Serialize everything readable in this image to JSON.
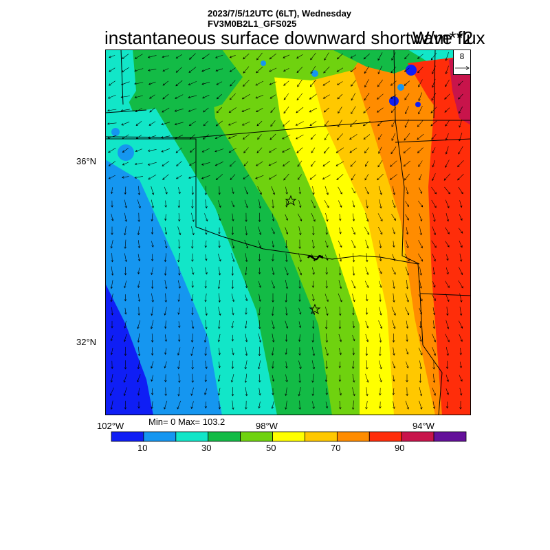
{
  "header": {
    "line1": "2023/7/5/12UTC (6LT), Wednesday",
    "line2": "FV3M0B2L1_GFS025"
  },
  "title": "instantaneous surface downward shortwave flux",
  "units": "W/m**2",
  "vector_reference": {
    "magnitude": "8"
  },
  "axes": {
    "lat_labels": [
      "36°N",
      "32°N"
    ],
    "lon_labels": [
      "102°W",
      "98°W",
      "94°W"
    ]
  },
  "stats": {
    "text": "Min= 0 Max= 103.2"
  },
  "colorbar": {
    "colors": [
      "#0f1ef5",
      "#1596f0",
      "#12e6c8",
      "#13bb46",
      "#6fd20f",
      "#ffff00",
      "#ffc800",
      "#ff8c00",
      "#ff2d0a",
      "#c8144b",
      "#64109a"
    ],
    "labels": [
      "10",
      "30",
      "50",
      "70",
      "90"
    ]
  },
  "map_features": {
    "markers": [
      "star-marker-north",
      "star-marker-south"
    ]
  }
}
